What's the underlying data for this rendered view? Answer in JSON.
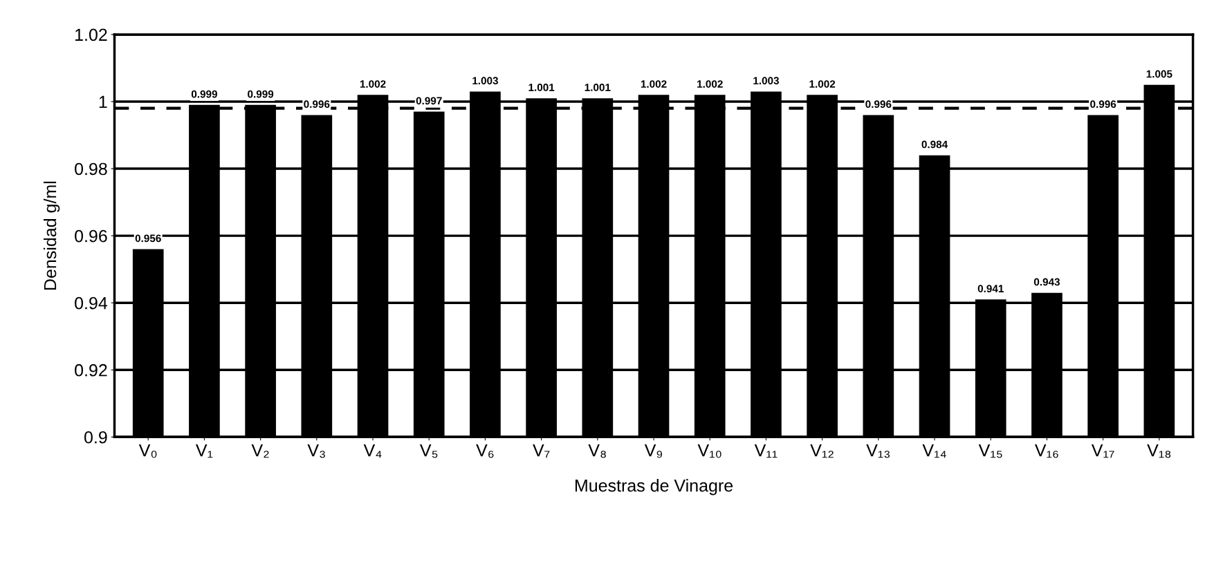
{
  "chart_data": {
    "type": "bar",
    "xlabel": "Muestras de Vinagre",
    "ylabel": "Densidad g/ml",
    "categories": [
      "V₀",
      "V₁",
      "V₂",
      "V₃",
      "V₄",
      "V₅",
      "V₆",
      "V₇",
      "V₈",
      "V₉",
      "V₁₀",
      "V₁₁",
      "V₁₂",
      "V₁₃",
      "V₁₄",
      "V₁₅",
      "V₁₆",
      "V₁₇",
      "V₁₈"
    ],
    "values": [
      0.956,
      0.999,
      0.999,
      0.996,
      1.002,
      0.997,
      1.003,
      1.001,
      1.001,
      1.002,
      1.002,
      1.003,
      1.002,
      0.996,
      0.984,
      0.941,
      0.943,
      0.996,
      1.005
    ],
    "color": "#000000",
    "data_labels": true,
    "ylim": [
      0.9,
      1.02
    ],
    "yticks": [
      {
        "value": 0.9,
        "label": "0.9"
      },
      0.92,
      0.94,
      0.96,
      0.98,
      {
        "value": 1.0,
        "label": "1"
      },
      1.02
    ],
    "grid": "y",
    "ref_lines": [
      {
        "axis": "y",
        "value": 0.998,
        "color": "#000000",
        "line_style": "dashed"
      }
    ]
  }
}
